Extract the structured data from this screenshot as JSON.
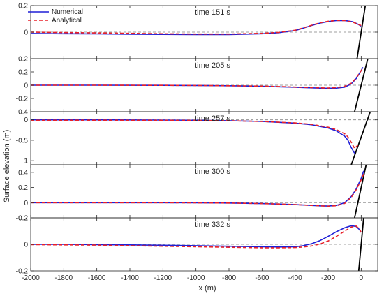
{
  "figure": {
    "ylabel": "Surface elevation (m)",
    "xlabel": "x (m)"
  },
  "legend": {
    "numerical": "Numerical",
    "analytical": "Analytical",
    "numerical_color": "#1f1fd6",
    "analytical_color": "#e8202a"
  },
  "chart_data": [
    {
      "type": "line",
      "title": "time 151 s",
      "xlim": [
        -2000,
        100
      ],
      "ylim": [
        -0.2,
        0.2
      ],
      "yticks": [
        -0.2,
        0,
        0.2
      ],
      "yticklabels": [
        "-0.2",
        "0",
        "0.2"
      ],
      "shoreline": {
        "x": [
          -25,
          25
        ],
        "y": [
          -0.2,
          0.2
        ]
      },
      "series": [
        {
          "name": "Numerical",
          "x": [
            -2000,
            -1800,
            -1600,
            -1400,
            -1200,
            -1000,
            -800,
            -600,
            -500,
            -400,
            -350,
            -300,
            -250,
            -200,
            -150,
            -100,
            -50,
            -20,
            0
          ],
          "y": [
            -0.01,
            -0.012,
            -0.013,
            -0.015,
            -0.017,
            -0.018,
            -0.018,
            -0.012,
            -0.004,
            0.012,
            0.03,
            0.05,
            0.068,
            0.08,
            0.087,
            0.088,
            0.078,
            0.06,
            0.045
          ]
        },
        {
          "name": "Analytical",
          "x": [
            -2000,
            -1800,
            -1600,
            -1400,
            -1200,
            -1000,
            -800,
            -600,
            -500,
            -400,
            -350,
            -300,
            -250,
            -200,
            -150,
            -100,
            -50,
            -20,
            0
          ],
          "y": [
            0.0,
            -0.003,
            -0.006,
            -0.009,
            -0.012,
            -0.014,
            -0.014,
            -0.009,
            -0.002,
            0.014,
            0.032,
            0.052,
            0.07,
            0.082,
            0.088,
            0.087,
            0.075,
            0.06,
            0.05
          ]
        }
      ]
    },
    {
      "type": "line",
      "title": "time 205 s",
      "xlim": [
        -2000,
        100
      ],
      "ylim": [
        -0.4,
        0.4
      ],
      "yticks": [
        -0.4,
        -0.2,
        0,
        0.2
      ],
      "yticklabels": [
        "-0.4",
        "-0.2",
        "0",
        "0.2"
      ],
      "shoreline": {
        "x": [
          -40,
          40
        ],
        "y": [
          -0.4,
          0.4
        ]
      },
      "series": [
        {
          "name": "Numerical",
          "x": [
            -2000,
            -1600,
            -1200,
            -1000,
            -800,
            -600,
            -500,
            -400,
            -300,
            -250,
            -200,
            -150,
            -100,
            -60,
            -30,
            0,
            10
          ],
          "y": [
            0.0,
            0.0,
            -0.002,
            -0.004,
            -0.008,
            -0.016,
            -0.024,
            -0.032,
            -0.04,
            -0.044,
            -0.046,
            -0.044,
            -0.03,
            0.02,
            0.1,
            0.22,
            0.27
          ]
        },
        {
          "name": "Analytical",
          "x": [
            -2000,
            -1600,
            -1200,
            -1000,
            -800,
            -600,
            -500,
            -400,
            -300,
            -250,
            -200,
            -150,
            -100,
            -60,
            -30,
            0,
            10
          ],
          "y": [
            0.0,
            0.0,
            -0.002,
            -0.004,
            -0.008,
            -0.014,
            -0.02,
            -0.028,
            -0.036,
            -0.04,
            -0.042,
            -0.036,
            -0.016,
            0.03,
            0.11,
            0.22,
            0.26
          ]
        }
      ]
    },
    {
      "type": "line",
      "title": "time 257 s",
      "xlim": [
        -2000,
        100
      ],
      "ylim": [
        -1.1,
        0.2
      ],
      "yticks": [
        -1,
        -0.5,
        0
      ],
      "yticklabels": [
        "-1",
        "-0.5",
        "0"
      ],
      "shoreline": {
        "x": [
          -60,
          55
        ],
        "y": [
          -1.1,
          0.2
        ]
      },
      "series": [
        {
          "name": "Numerical",
          "x": [
            -2000,
            -1600,
            -1200,
            -1000,
            -800,
            -600,
            -400,
            -300,
            -200,
            -150,
            -100,
            -80,
            -60,
            -40
          ],
          "y": [
            0.0,
            0.0,
            -0.005,
            -0.01,
            -0.02,
            -0.04,
            -0.08,
            -0.12,
            -0.2,
            -0.27,
            -0.4,
            -0.5,
            -0.68,
            -0.82
          ]
        },
        {
          "name": "Analytical",
          "x": [
            -2000,
            -1600,
            -1200,
            -1000,
            -800,
            -600,
            -400,
            -300,
            -200,
            -150,
            -100,
            -80,
            -60,
            -40,
            -20
          ],
          "y": [
            -0.01,
            -0.008,
            -0.01,
            -0.014,
            -0.022,
            -0.04,
            -0.075,
            -0.11,
            -0.18,
            -0.24,
            -0.34,
            -0.42,
            -0.55,
            -0.7,
            -0.62
          ]
        }
      ]
    },
    {
      "type": "line",
      "title": "time 300 s",
      "xlim": [
        -2000,
        100
      ],
      "ylim": [
        -0.2,
        0.5
      ],
      "yticks": [
        -0.2,
        0,
        0.2,
        0.4
      ],
      "yticklabels": [
        "-0.2",
        "0",
        "0.2",
        "0.4"
      ],
      "shoreline": {
        "x": [
          -40,
          30
        ],
        "y": [
          -0.2,
          0.5
        ]
      },
      "series": [
        {
          "name": "Numerical",
          "x": [
            -2000,
            -1600,
            -1200,
            -1000,
            -800,
            -600,
            -500,
            -400,
            -300,
            -250,
            -200,
            -150,
            -100,
            -60,
            -30,
            0,
            15
          ],
          "y": [
            0.0,
            0.0,
            0.0,
            -0.002,
            -0.005,
            -0.012,
            -0.018,
            -0.026,
            -0.036,
            -0.042,
            -0.044,
            -0.036,
            0.0,
            0.08,
            0.18,
            0.32,
            0.42
          ]
        },
        {
          "name": "Analytical",
          "x": [
            -2000,
            -1600,
            -1200,
            -1000,
            -800,
            -600,
            -500,
            -400,
            -300,
            -250,
            -200,
            -150,
            -100,
            -60,
            -30,
            0,
            15
          ],
          "y": [
            0.0,
            0.0,
            0.0,
            -0.002,
            -0.005,
            -0.012,
            -0.018,
            -0.026,
            -0.036,
            -0.042,
            -0.046,
            -0.04,
            -0.01,
            0.07,
            0.17,
            0.3,
            0.38
          ]
        }
      ]
    },
    {
      "type": "line",
      "title": "time 332 s",
      "xlim": [
        -2000,
        100
      ],
      "ylim": [
        -0.2,
        0.2
      ],
      "yticks": [
        -0.2,
        0,
        0.2
      ],
      "yticklabels": [
        "-0.2",
        "0",
        "0.2"
      ],
      "shoreline": {
        "x": [
          -15,
          15
        ],
        "y": [
          -0.2,
          0.2
        ]
      },
      "series": [
        {
          "name": "Numerical",
          "x": [
            -2000,
            -1800,
            -1600,
            -1400,
            -1200,
            -1000,
            -800,
            -600,
            -500,
            -400,
            -350,
            -300,
            -250,
            -200,
            -150,
            -100,
            -60,
            -30,
            -10,
            0
          ],
          "y": [
            0.0,
            0.0,
            -0.002,
            -0.004,
            -0.007,
            -0.01,
            -0.014,
            -0.018,
            -0.02,
            -0.018,
            -0.01,
            0.005,
            0.028,
            0.06,
            0.095,
            0.125,
            0.14,
            0.135,
            0.11,
            0.09
          ]
        },
        {
          "name": "Analytical",
          "x": [
            -2000,
            -1800,
            -1600,
            -1400,
            -1200,
            -1000,
            -800,
            -600,
            -500,
            -400,
            -350,
            -300,
            -250,
            -200,
            -150,
            -100,
            -60,
            -30,
            -10,
            0
          ],
          "y": [
            -0.002,
            -0.004,
            -0.006,
            -0.01,
            -0.014,
            -0.018,
            -0.022,
            -0.026,
            -0.026,
            -0.024,
            -0.02,
            -0.012,
            0.002,
            0.025,
            0.06,
            0.1,
            0.13,
            0.138,
            0.115,
            0.09
          ]
        }
      ]
    }
  ],
  "xaxis": {
    "ticks": [
      -2000,
      -1800,
      -1600,
      -1400,
      -1200,
      -1000,
      -800,
      -600,
      -400,
      -200,
      0
    ],
    "ticklabels": [
      "-2000",
      "-1800",
      "-1600",
      "-1400",
      "-1200",
      "-1000",
      "-800",
      "-600",
      "-400",
      "-200",
      "0"
    ]
  }
}
